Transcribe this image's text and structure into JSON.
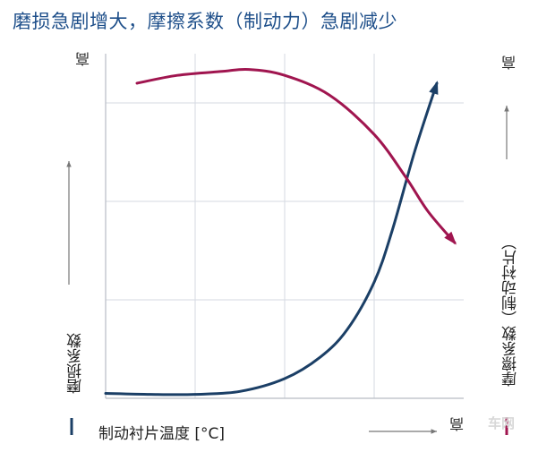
{
  "title": "磨损急剧增大，摩擦系数（制动力）急剧减少",
  "watermark": "车网",
  "chart_data": {
    "type": "line",
    "title": "磨损急剧增大，摩擦系数（制动力）急剧减少",
    "xlabel": "制动衬片温度 [°C]",
    "x_high_label": "高",
    "left_axis": {
      "label": "磨损系数",
      "high_label": "高",
      "color": "#1b3f66"
    },
    "right_axis": {
      "label": "摩擦系数（制动衬片）",
      "high_label": "高",
      "color": "#a0154f"
    },
    "xlim": [
      0,
      4
    ],
    "ylim": [
      0,
      3.5
    ],
    "grid": true,
    "series": [
      {
        "name": "磨损系数",
        "color": "#1b3f66",
        "arrow": true,
        "x": [
          0.0,
          0.5,
          1.0,
          1.5,
          2.0,
          2.4,
          2.7,
          3.0,
          3.2,
          3.45,
          3.7
        ],
        "values": [
          0.05,
          0.04,
          0.04,
          0.07,
          0.2,
          0.42,
          0.7,
          1.18,
          1.7,
          2.5,
          3.2
        ]
      },
      {
        "name": "摩擦系数（制动衬片）",
        "color": "#a0154f",
        "arrow": true,
        "x": [
          0.35,
          0.8,
          1.3,
          1.6,
          2.0,
          2.5,
          3.0,
          3.35,
          3.6,
          3.9
        ],
        "values": [
          3.2,
          3.28,
          3.32,
          3.34,
          3.28,
          3.08,
          2.68,
          2.25,
          1.9,
          1.58
        ]
      }
    ]
  }
}
